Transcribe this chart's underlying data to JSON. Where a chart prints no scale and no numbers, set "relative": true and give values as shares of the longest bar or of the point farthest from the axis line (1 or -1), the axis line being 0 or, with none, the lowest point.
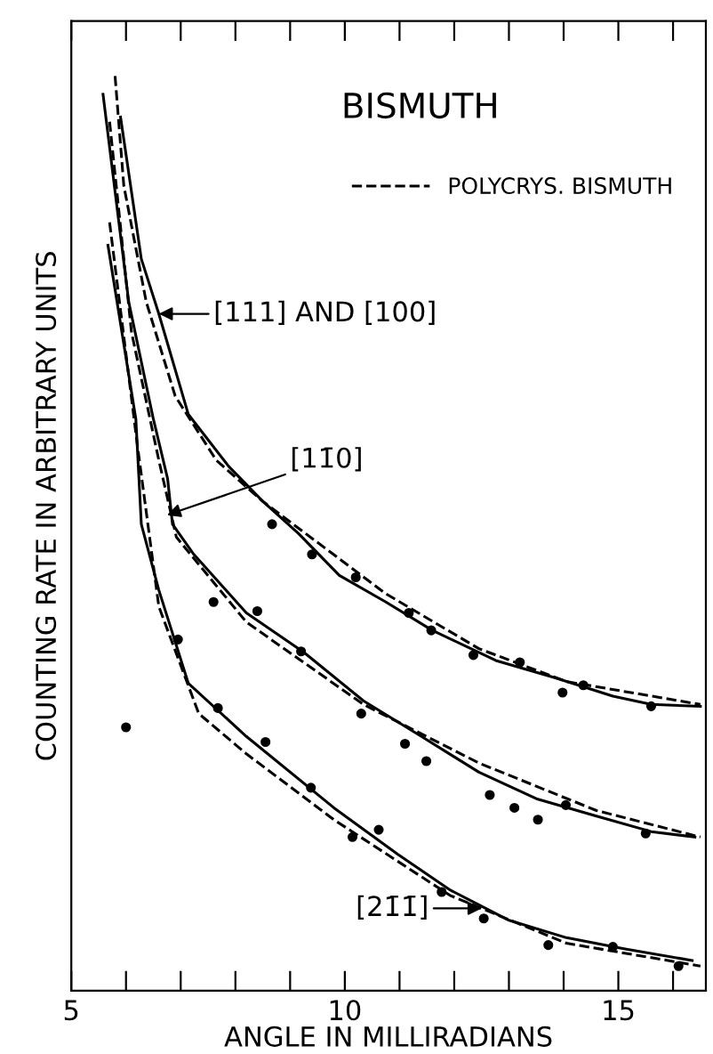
{
  "chart_data": {
    "type": "line",
    "title": "BISMUTH",
    "xlabel": "ANGLE IN MILLIRADIANS",
    "ylabel": "COUNTING RATE IN ARBITRARY UNITS",
    "relative": true,
    "xlim": [
      5,
      16.6
    ],
    "xticks": [
      5,
      {
        "value": 6,
        "label": null
      },
      {
        "value": 7,
        "label": null
      },
      {
        "value": 8,
        "label": null
      },
      {
        "value": 9,
        "label": null
      },
      10,
      {
        "value": 11,
        "label": null
      },
      {
        "value": 12,
        "label": null
      },
      {
        "value": 13,
        "label": null
      },
      {
        "value": 14,
        "label": null
      },
      15,
      {
        "value": 16,
        "label": null
      }
    ],
    "grid": false,
    "legend": "top right",
    "tick_labels": "x",
    "series": [
      {
        "type": "line",
        "line_style": "solid",
        "marker": "none",
        "color": "#000000",
        "x": [
          5.9,
          6.28,
          6.6,
          7.14,
          7.88,
          8.5,
          9.15,
          9.9,
          10.75,
          11.6,
          12.76,
          13.85,
          14.9,
          15.6,
          16.5
        ],
        "values": [
          0.955,
          0.8,
          0.74,
          0.63,
          0.573,
          0.535,
          0.5,
          0.454,
          0.425,
          0.394,
          0.361,
          0.342,
          0.322,
          0.313,
          0.311
        ]
      },
      {
        "type": "line",
        "line_style": "dashed",
        "marker": "none",
        "color": "#000000",
        "name": "POLYCRYS. BISMUTH",
        "x": [
          5.8,
          5.96,
          6.37,
          6.9,
          7.65,
          8.5,
          10.75,
          12.45,
          14.05,
          16.5
        ],
        "values": [
          1.0,
          0.88,
          0.753,
          0.65,
          0.58,
          0.535,
          0.434,
          0.374,
          0.338,
          0.313
        ]
      },
      {
        "type": "line",
        "line_style": "solid",
        "marker": "none",
        "color": "#000000",
        "x": [
          5.58,
          6.05,
          6.5,
          6.76,
          6.85,
          7.24,
          8.2,
          9.25,
          10.34,
          11.4,
          12.45,
          13.5,
          14.6,
          15.6,
          16.4
        ],
        "values": [
          0.98,
          0.753,
          0.625,
          0.56,
          0.51,
          0.477,
          0.413,
          0.37,
          0.317,
          0.278,
          0.239,
          0.21,
          0.191,
          0.174,
          0.168
        ]
      },
      {
        "type": "line",
        "line_style": "dashed",
        "marker": "none",
        "color": "#000000",
        "x": [
          5.7,
          6.1,
          6.6,
          6.92,
          8.2,
          10.34,
          12.45,
          14.6,
          16.5
        ],
        "values": [
          0.95,
          0.72,
          0.58,
          0.496,
          0.403,
          0.313,
          0.249,
          0.197,
          0.168
        ]
      },
      {
        "type": "line",
        "line_style": "solid",
        "marker": "none",
        "color": "#000000",
        "x": [
          5.67,
          6.18,
          6.28,
          6.6,
          7.14,
          8.2,
          9.8,
          10.97,
          11.93,
          13.0,
          14.05,
          15.1,
          16.35
        ],
        "values": [
          0.815,
          0.625,
          0.51,
          0.438,
          0.336,
          0.278,
          0.2,
          0.149,
          0.11,
          0.077,
          0.058,
          0.046,
          0.033
        ]
      },
      {
        "type": "line",
        "line_style": "dashed",
        "marker": "none",
        "color": "#000000",
        "x": [
          5.7,
          6.2,
          6.6,
          7.33,
          8.2,
          9.8,
          11.93,
          14.05,
          16.5
        ],
        "values": [
          0.84,
          0.6,
          0.42,
          0.303,
          0.259,
          0.187,
          0.104,
          0.052,
          0.027
        ]
      },
      {
        "type": "scatter",
        "marker": "circle",
        "color": "#000000",
        "x": [
          8.67,
          9.4,
          10.2,
          11.17,
          11.58,
          12.35,
          13.2,
          13.98,
          14.36,
          15.6
        ],
        "values": [
          0.51,
          0.477,
          0.452,
          0.413,
          0.394,
          0.367,
          0.359,
          0.326,
          0.334,
          0.311
        ]
      },
      {
        "type": "scatter",
        "marker": "circle",
        "color": "#000000",
        "x": [
          7.6,
          8.4,
          9.2,
          10.3,
          11.1,
          11.49,
          12.65,
          13.1,
          13.53,
          14.04,
          15.5
        ],
        "values": [
          0.425,
          0.415,
          0.371,
          0.303,
          0.27,
          0.251,
          0.214,
          0.2,
          0.187,
          0.203,
          0.172
        ]
      },
      {
        "type": "scatter",
        "marker": "circle",
        "color": "#000000",
        "x": [
          6.95,
          7.68,
          8.55,
          9.38,
          10.14,
          10.62,
          11.77,
          12.54,
          13.72,
          14.9,
          16.1
        ],
        "values": [
          0.384,
          0.309,
          0.272,
          0.222,
          0.168,
          0.176,
          0.108,
          0.079,
          0.05,
          0.048,
          0.027
        ]
      },
      {
        "type": "scatter",
        "marker": "circle",
        "color": "#000000",
        "x": [
          6.0
        ],
        "values": [
          0.288
        ]
      }
    ],
    "annotations": [
      {
        "text": "[111] AND [100]",
        "x": 6.6,
        "y": 0.74
      },
      {
        "text": "[11̄0]",
        "x": 6.75,
        "y": 0.52
      },
      {
        "text": "[21̄1̄]",
        "x": 12.5,
        "y": 0.09
      }
    ]
  }
}
